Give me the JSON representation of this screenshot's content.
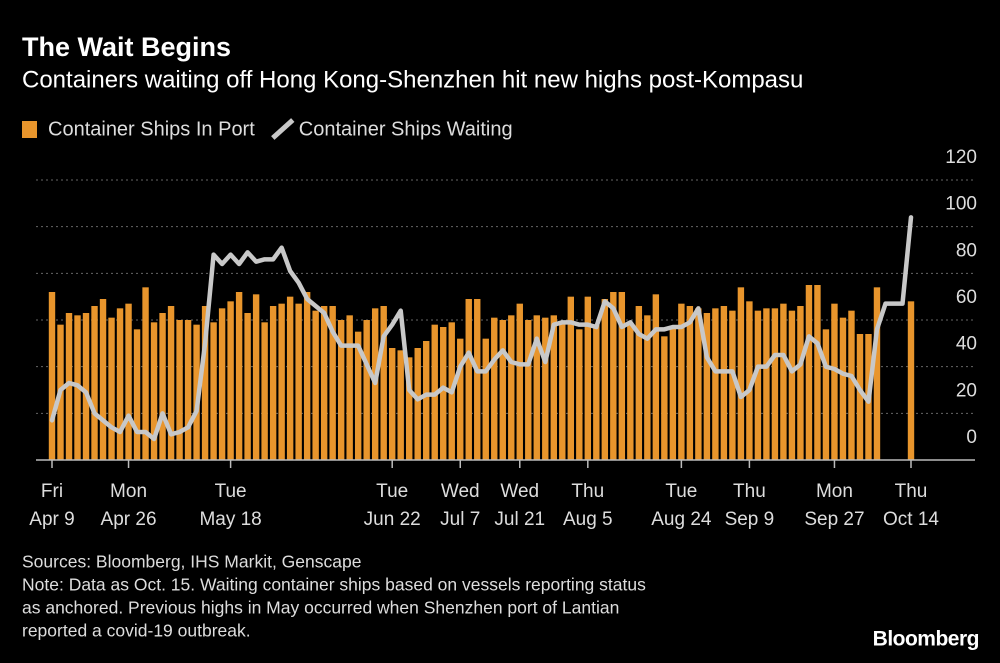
{
  "chart_data": {
    "type": "bar",
    "title": "The Wait Begins",
    "subtitle": "Containers waiting off Hong Kong-Shenzhen hit new highs post-Kompasu",
    "categories": [
      [
        "Fri",
        "Apr 9"
      ],
      null,
      null,
      null,
      null,
      null,
      null,
      null,
      null,
      [
        "Mon",
        "Apr 26"
      ],
      null,
      null,
      null,
      null,
      null,
      null,
      null,
      null,
      null,
      null,
      null,
      [
        "Tue",
        "May 18"
      ],
      null,
      null,
      null,
      null,
      null,
      null,
      null,
      null,
      null,
      null,
      null,
      null,
      null,
      null,
      null,
      null,
      null,
      null,
      [
        "Tue",
        "Jun 22"
      ],
      null,
      null,
      null,
      null,
      null,
      null,
      null,
      [
        "Wed",
        "Jul 7"
      ],
      null,
      null,
      null,
      null,
      null,
      null,
      [
        "Wed",
        "Jul 21"
      ],
      null,
      null,
      null,
      null,
      null,
      null,
      null,
      [
        "Thu",
        "Aug 5"
      ],
      null,
      null,
      null,
      null,
      null,
      null,
      null,
      null,
      null,
      null,
      [
        "Tue",
        "Aug 24"
      ],
      null,
      null,
      null,
      null,
      null,
      null,
      null,
      [
        "Thu",
        "Sep 9"
      ],
      null,
      null,
      null,
      null,
      null,
      null,
      null,
      null,
      null,
      [
        "Mon",
        "Sep 27"
      ],
      null,
      null,
      null,
      null,
      null,
      null,
      null,
      null,
      [
        "Thu",
        "Oct 14"
      ]
    ],
    "series": [
      {
        "name": "Container Ships In Port",
        "type": "bar",
        "color": "#e8952c",
        "values": [
          72,
          58,
          63,
          62,
          63,
          66,
          69,
          61,
          65,
          67,
          56,
          74,
          59,
          63,
          66,
          60,
          60,
          58,
          66,
          59,
          65,
          68,
          72,
          63,
          71,
          59,
          66,
          67,
          70,
          67,
          72,
          64,
          66,
          66,
          60,
          62,
          55,
          60,
          65,
          66,
          48,
          47,
          44,
          48,
          51,
          58,
          57,
          59,
          52,
          69,
          69,
          52,
          61,
          60,
          62,
          67,
          60,
          62,
          61,
          62,
          59,
          70,
          56,
          70,
          58,
          69,
          72,
          72,
          58,
          66,
          62,
          71,
          53,
          57,
          67,
          66,
          65,
          63,
          65,
          66,
          64,
          74,
          68,
          64,
          65,
          65,
          67,
          64,
          66,
          75,
          75,
          56,
          67,
          61,
          64,
          54,
          54,
          74,
          null,
          null,
          null,
          68
        ]
      },
      {
        "name": "Container Ships Waiting",
        "type": "line",
        "color": "#c8c8c8",
        "values": [
          17,
          30,
          33,
          32,
          29,
          20,
          17,
          14,
          12,
          19,
          12,
          12,
          9,
          20,
          11,
          12,
          14,
          21,
          50,
          88,
          84,
          88,
          84,
          89,
          85,
          86,
          86,
          91,
          81,
          76,
          69,
          66,
          63,
          55,
          49,
          49,
          49,
          41,
          33,
          53,
          58,
          64,
          30,
          26,
          28,
          28,
          31,
          29,
          40,
          46,
          38,
          38,
          43,
          47,
          42,
          41,
          41,
          52,
          42,
          58,
          59,
          59,
          58,
          58,
          57,
          68,
          65,
          57,
          59,
          54,
          52,
          56,
          56,
          57,
          57,
          59,
          65,
          44,
          38,
          38,
          38,
          27,
          30,
          40,
          40,
          45,
          45,
          38,
          41,
          53,
          50,
          40,
          39,
          37,
          36,
          30,
          25,
          56,
          67,
          67,
          67,
          104
        ]
      }
    ],
    "ylim": [
      0,
      120
    ],
    "yticks": [
      0,
      20,
      40,
      60,
      80,
      100,
      120
    ],
    "grid": true,
    "source": "Sources: Bloomberg, IHS Markit, Genscape",
    "note_lines": [
      "Note: Data as Oct. 15. Waiting container ships based on vessels reporting status",
      "as anchored. Previous highs in May occurred when Shenzhen port of Lantian",
      "reported a covid-19 outbreak."
    ],
    "logo": "Bloomberg"
  }
}
